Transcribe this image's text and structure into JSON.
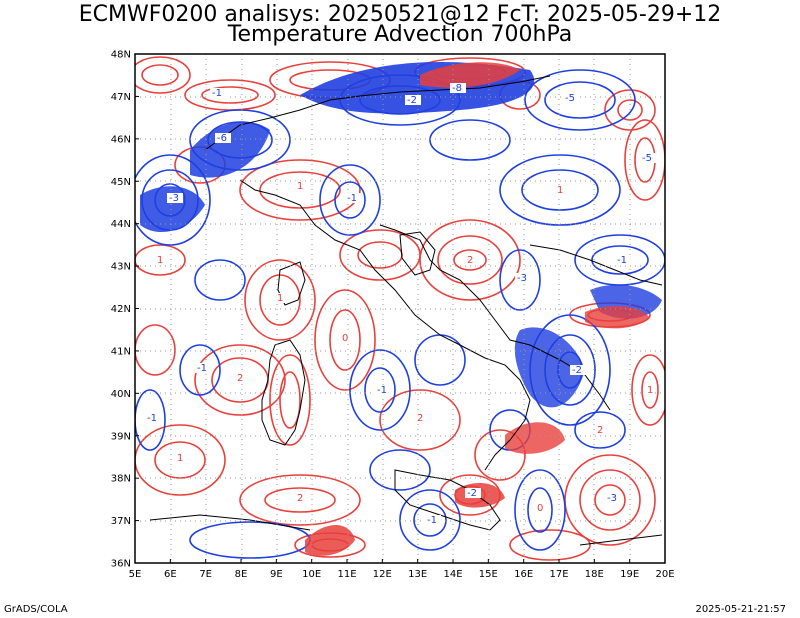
{
  "title_line1": "ECMWF0200 analisys: 20250521@12 FcT: 2025-05-29+12",
  "title_line2": "Temperature Advection 700hPa",
  "footer_left": "GrADS/COLA",
  "footer_right": "2025-05-21-21:57",
  "lat_labels": [
    "36N",
    "37N",
    "38N",
    "39N",
    "40N",
    "41N",
    "42N",
    "43N",
    "44N",
    "45N",
    "46N",
    "47N",
    "48N"
  ],
  "lon_labels": [
    "5E",
    "6E",
    "7E",
    "8E",
    "9E",
    "10E",
    "11E",
    "12E",
    "13E",
    "14E",
    "15E",
    "16E",
    "17E",
    "18E",
    "19E",
    "20E"
  ],
  "colors": {
    "warm": "#e8403c",
    "cold": "#1f3fe0",
    "coast": "#000000",
    "grid": "#9a9a9a"
  },
  "contour_labels": [
    "1",
    "2",
    "-1",
    "-2",
    "-3",
    "-5",
    "-6",
    "-8",
    "1",
    "0",
    "-1",
    "2",
    "1",
    "-1",
    "-2",
    "-3",
    "1",
    "2",
    "-1",
    "0",
    "-1",
    "-2",
    "1",
    "2",
    "-1",
    "-3",
    "-5",
    "1",
    "-1",
    "2"
  ]
}
